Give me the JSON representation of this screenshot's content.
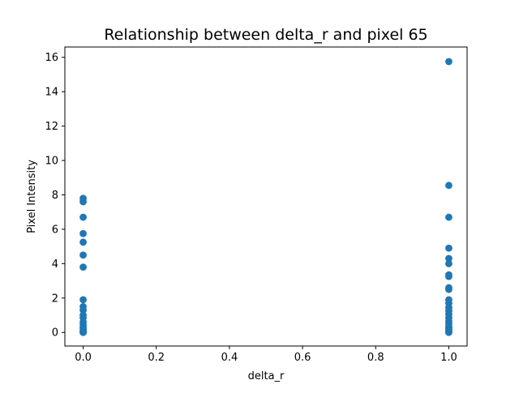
{
  "chart_data": {
    "type": "scatter",
    "title": "Relationship between delta_r and pixel 65",
    "xlabel": "delta_r",
    "ylabel": "Pixel Intensity",
    "xlim": [
      -0.05,
      1.05
    ],
    "ylim": [
      -0.79,
      16.6
    ],
    "xticks": [
      "0.0",
      "0.2",
      "0.4",
      "0.6",
      "0.8",
      "1.0"
    ],
    "yticks": [
      "0",
      "2",
      "4",
      "6",
      "8",
      "10",
      "12",
      "14",
      "16"
    ],
    "point_color": "#1f77b4",
    "grid": false,
    "points": [
      {
        "x": 0,
        "y": 7.8
      },
      {
        "x": 0,
        "y": 7.6
      },
      {
        "x": 0,
        "y": 6.7
      },
      {
        "x": 0,
        "y": 5.75
      },
      {
        "x": 0,
        "y": 5.25
      },
      {
        "x": 0,
        "y": 4.5
      },
      {
        "x": 0,
        "y": 3.8
      },
      {
        "x": 0,
        "y": 1.9
      },
      {
        "x": 0,
        "y": 1.5
      },
      {
        "x": 0,
        "y": 1.3
      },
      {
        "x": 0,
        "y": 1.0
      },
      {
        "x": 0,
        "y": 0.85
      },
      {
        "x": 0,
        "y": 0.6
      },
      {
        "x": 0,
        "y": 0.45
      },
      {
        "x": 0,
        "y": 0.3
      },
      {
        "x": 0,
        "y": 0.2
      },
      {
        "x": 0,
        "y": 0.1
      },
      {
        "x": 0,
        "y": 0.05
      },
      {
        "x": 0,
        "y": 0.0
      },
      {
        "x": 0,
        "y": 0.0
      },
      {
        "x": 1,
        "y": 15.75
      },
      {
        "x": 1,
        "y": 8.55
      },
      {
        "x": 1,
        "y": 6.7
      },
      {
        "x": 1,
        "y": 4.9
      },
      {
        "x": 1,
        "y": 4.3
      },
      {
        "x": 1,
        "y": 4.0
      },
      {
        "x": 1,
        "y": 3.35
      },
      {
        "x": 1,
        "y": 3.25
      },
      {
        "x": 1,
        "y": 2.6
      },
      {
        "x": 1,
        "y": 2.5
      },
      {
        "x": 1,
        "y": 1.9
      },
      {
        "x": 1,
        "y": 1.7
      },
      {
        "x": 1,
        "y": 1.45
      },
      {
        "x": 1,
        "y": 1.25
      },
      {
        "x": 1,
        "y": 1.05
      },
      {
        "x": 1,
        "y": 0.85
      },
      {
        "x": 1,
        "y": 0.65
      },
      {
        "x": 1,
        "y": 0.5
      },
      {
        "x": 1,
        "y": 0.35
      },
      {
        "x": 1,
        "y": 0.25
      },
      {
        "x": 1,
        "y": 0.15
      },
      {
        "x": 1,
        "y": 0.08
      },
      {
        "x": 1,
        "y": 0.03
      },
      {
        "x": 1,
        "y": 0.0
      }
    ]
  }
}
